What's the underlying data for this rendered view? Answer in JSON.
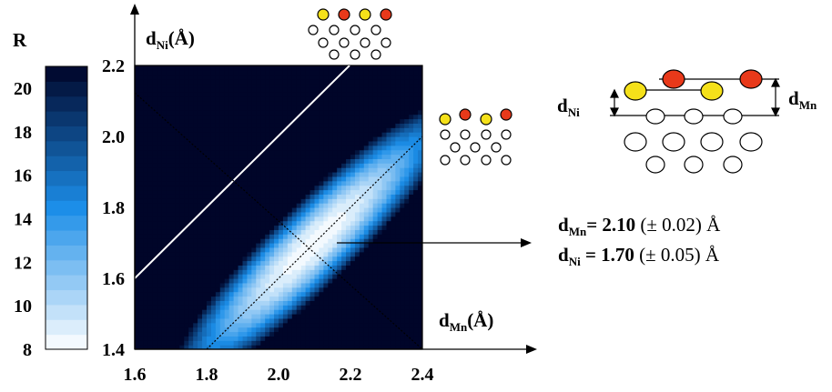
{
  "chart_data": {
    "type": "heatmap",
    "x_axis": {
      "label_main": "d",
      "label_sub": "Mn",
      "label_unit": "(Å)",
      "range": [
        1.6,
        2.4
      ],
      "ticks": [
        "1.6",
        "1.8",
        "2.0",
        "2.2",
        "2.4"
      ]
    },
    "y_axis": {
      "label_main": "d",
      "label_sub": "Ni",
      "label_unit": "(Å)",
      "range": [
        1.4,
        2.2
      ],
      "ticks": [
        "1.4",
        "1.6",
        "1.8",
        "2.0",
        "2.2"
      ]
    },
    "colorbar": {
      "title": "R",
      "range": [
        8,
        21
      ],
      "ticks": [
        "8",
        "10",
        "12",
        "14",
        "16",
        "18",
        "20"
      ]
    },
    "minimum": {
      "x": 2.1,
      "y": 1.7,
      "R": 8
    },
    "colors": {
      "low": "#ffffff",
      "mid": "#1c8ee8",
      "high": "#000428"
    },
    "annotation": {
      "dMn_label": "d",
      "dMn_sub": "Mn",
      "dMn_eq": "= 2.10",
      "dMn_err": "(± 0.02) Å",
      "dNi_label": "d",
      "dNi_sub": "Ni",
      "dNi_eq": " = 1.70",
      "dNi_err": "(± 0.05) Å"
    },
    "schematic": {
      "dNi_label": "d",
      "dNi_sub": "Ni",
      "dMn_label": "d",
      "dMn_sub": "Mn"
    }
  }
}
